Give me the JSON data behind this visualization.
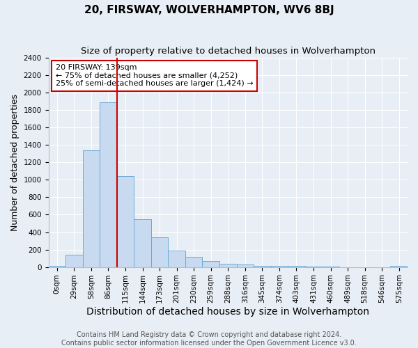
{
  "title": "20, FIRSWAY, WOLVERHAMPTON, WV6 8BJ",
  "subtitle": "Size of property relative to detached houses in Wolverhampton",
  "xlabel": "Distribution of detached houses by size in Wolverhampton",
  "ylabel": "Number of detached properties",
  "footer_line1": "Contains HM Land Registry data © Crown copyright and database right 2024.",
  "footer_line2": "Contains public sector information licensed under the Open Government Licence v3.0.",
  "categories": [
    "0sqm",
    "29sqm",
    "58sqm",
    "86sqm",
    "115sqm",
    "144sqm",
    "173sqm",
    "201sqm",
    "230sqm",
    "259sqm",
    "288sqm",
    "316sqm",
    "345sqm",
    "374sqm",
    "403sqm",
    "431sqm",
    "460sqm",
    "489sqm",
    "518sqm",
    "546sqm",
    "575sqm"
  ],
  "values": [
    15,
    140,
    1340,
    1890,
    1040,
    550,
    340,
    185,
    120,
    70,
    35,
    25,
    15,
    10,
    10,
    5,
    5,
    0,
    0,
    0,
    15
  ],
  "bar_color": "#c8daf0",
  "bar_edge_color": "#6aaad4",
  "vline_color": "#cc0000",
  "vline_x_index": 3.5,
  "annotation_text": "20 FIRSWAY: 139sqm\n← 75% of detached houses are smaller (4,252)\n25% of semi-detached houses are larger (1,424) →",
  "annotation_box_color": "#ffffff",
  "annotation_box_edge_color": "#cc0000",
  "ylim": [
    0,
    2400
  ],
  "yticks": [
    0,
    200,
    400,
    600,
    800,
    1000,
    1200,
    1400,
    1600,
    1800,
    2000,
    2200,
    2400
  ],
  "background_color": "#e8eef5",
  "plot_background_color": "#e8eef5",
  "title_fontsize": 11,
  "subtitle_fontsize": 9.5,
  "xlabel_fontsize": 10,
  "ylabel_fontsize": 9,
  "tick_fontsize": 7.5,
  "footer_fontsize": 7,
  "grid_color": "#ffffff",
  "annotation_fontsize": 8
}
